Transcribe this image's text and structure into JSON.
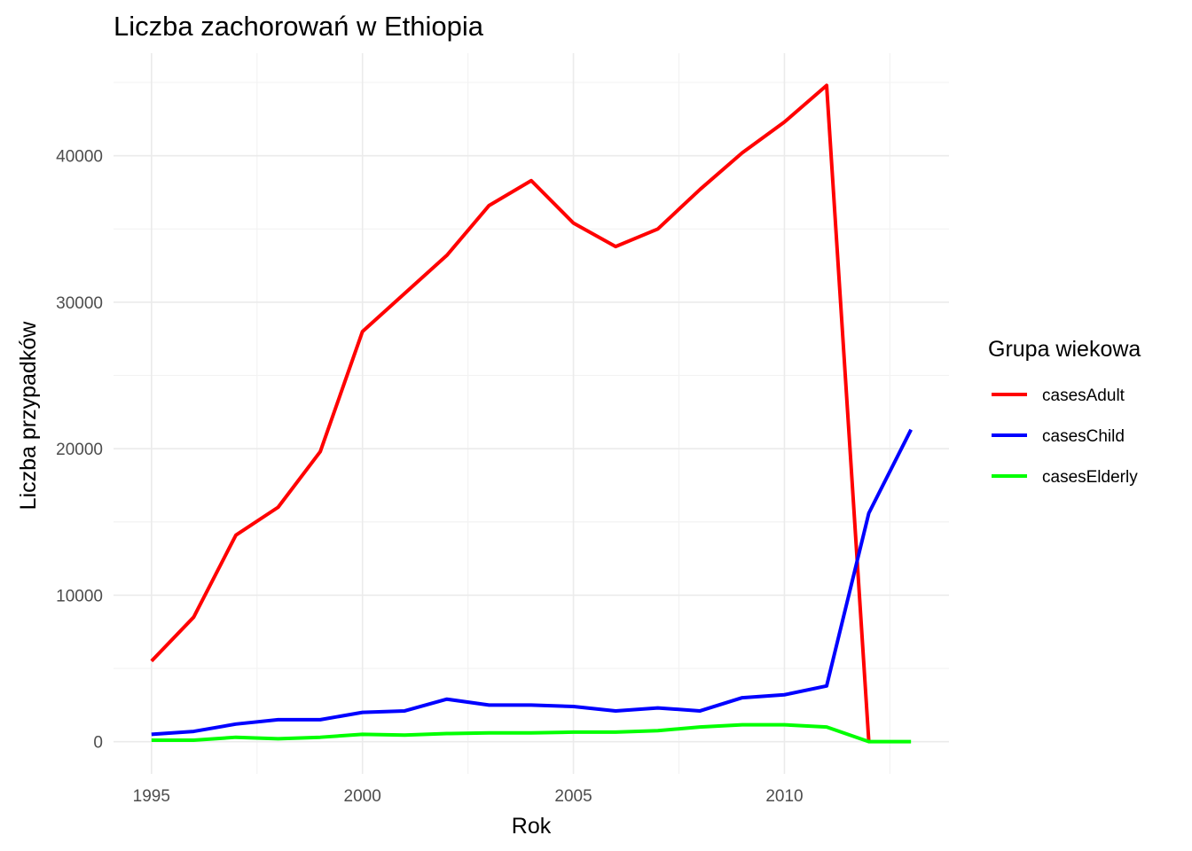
{
  "chart_data": {
    "type": "line",
    "title": "Liczba zachorowań w Ethiopia",
    "xlabel": "Rok",
    "ylabel": "Liczba przypadków",
    "x": [
      1995,
      1996,
      1997,
      1998,
      1999,
      2000,
      2001,
      2002,
      2003,
      2004,
      2005,
      2006,
      2007,
      2008,
      2009,
      2010,
      2011,
      2012,
      2013
    ],
    "xlim": [
      1994.1,
      2013.9
    ],
    "ylim": [
      -2200,
      47000
    ],
    "x_ticks": [
      1995,
      2000,
      2005,
      2010
    ],
    "x_tick_labels": [
      "1995",
      "2000",
      "2005",
      "2010"
    ],
    "y_ticks": [
      0,
      10000,
      20000,
      30000,
      40000
    ],
    "y_tick_labels": [
      "0",
      "10000",
      "20000",
      "30000",
      "40000"
    ],
    "grid": true,
    "legend": {
      "title": "Grupa wiekowa",
      "position": "right"
    },
    "series": [
      {
        "name": "casesAdult",
        "color": "#ff0000",
        "values": [
          5500,
          8500,
          14100,
          16000,
          19800,
          28000,
          30600,
          33200,
          36600,
          38300,
          35400,
          33800,
          35000,
          37700,
          40200,
          42300,
          44800,
          0,
          null
        ]
      },
      {
        "name": "casesChild",
        "color": "#0000ff",
        "values": [
          500,
          700,
          1200,
          1500,
          1500,
          2000,
          2100,
          2900,
          2500,
          2500,
          2400,
          2100,
          2300,
          2100,
          3000,
          3200,
          3800,
          15600,
          21300
        ]
      },
      {
        "name": "casesElderly",
        "color": "#00ff00",
        "values": [
          100,
          100,
          300,
          200,
          300,
          500,
          450,
          550,
          600,
          600,
          650,
          650,
          750,
          1000,
          1150,
          1150,
          1000,
          0,
          0
        ]
      }
    ]
  }
}
